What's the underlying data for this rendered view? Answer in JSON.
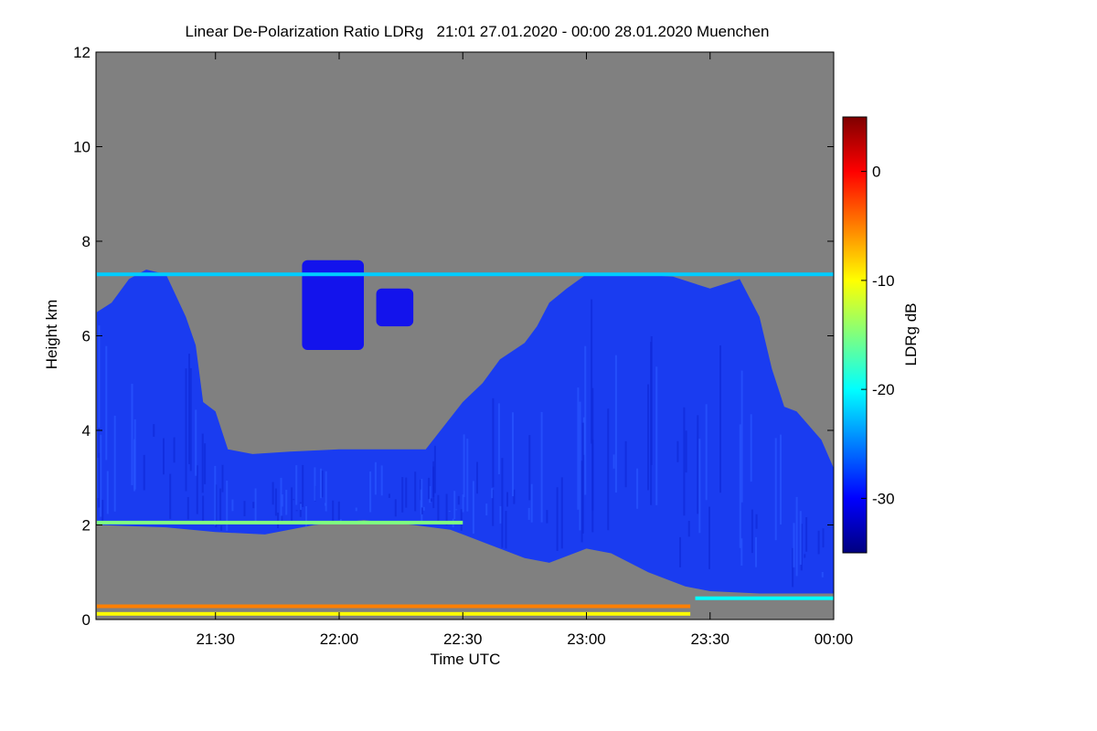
{
  "chart_data": {
    "type": "heatmap",
    "title": "Linear De-Polarization Ratio LDRg   21:01 27.01.2020 - 00:00 28.01.2020 Muenchen",
    "xlabel": "Time UTC",
    "ylabel": "Height km",
    "x_ticks": [
      "21:30",
      "22:00",
      "22:30",
      "23:00",
      "23:30",
      "00:00"
    ],
    "x_tick_hours": [
      21.5,
      22.0,
      22.5,
      23.0,
      23.5,
      24.0
    ],
    "xlim_hours": [
      21.0167,
      24.0
    ],
    "y_ticks": [
      "0",
      "2",
      "4",
      "6",
      "8",
      "10",
      "12"
    ],
    "y_tick_values": [
      0,
      2,
      4,
      6,
      8,
      10,
      12
    ],
    "ylim": [
      0,
      12
    ],
    "colorbar": {
      "label": "LDRg dB",
      "ticks": [
        "0",
        "-10",
        "-20",
        "-30"
      ],
      "tick_values": [
        0,
        -10,
        -20,
        -30
      ],
      "range": [
        -35,
        5
      ],
      "colormap": [
        "#00007f",
        "#0000ff",
        "#007fff",
        "#00ffff",
        "#7fff7f",
        "#ffff00",
        "#ff7f00",
        "#ff0000",
        "#7f0000"
      ]
    },
    "background_color": "#808080",
    "cloud_color": "#1a3cf0",
    "cloud_top_km": [
      [
        21.02,
        6.5
      ],
      [
        21.08,
        6.7
      ],
      [
        21.15,
        7.2
      ],
      [
        21.22,
        7.4
      ],
      [
        21.3,
        7.3
      ],
      [
        21.38,
        6.4
      ],
      [
        21.42,
        5.8
      ],
      [
        21.45,
        4.6
      ],
      [
        21.5,
        4.4
      ],
      [
        21.55,
        3.6
      ],
      [
        21.65,
        3.5
      ],
      [
        21.8,
        3.55
      ],
      [
        22.0,
        3.6
      ],
      [
        22.2,
        3.6
      ],
      [
        22.35,
        3.6
      ],
      [
        22.5,
        4.6
      ],
      [
        22.58,
        5.0
      ],
      [
        22.65,
        5.5
      ],
      [
        22.75,
        5.85
      ],
      [
        22.8,
        6.2
      ],
      [
        22.85,
        6.7
      ],
      [
        22.92,
        7.0
      ],
      [
        23.0,
        7.3
      ],
      [
        23.2,
        7.3
      ],
      [
        23.35,
        7.25
      ],
      [
        23.5,
        7.0
      ],
      [
        23.62,
        7.2
      ],
      [
        23.7,
        6.4
      ],
      [
        23.75,
        5.3
      ],
      [
        23.8,
        4.5
      ],
      [
        23.85,
        4.4
      ],
      [
        23.9,
        4.1
      ],
      [
        23.95,
        3.8
      ],
      [
        24.0,
        3.2
      ]
    ],
    "cloud_base_km": [
      [
        21.02,
        2.0
      ],
      [
        21.3,
        1.95
      ],
      [
        21.5,
        1.85
      ],
      [
        21.7,
        1.8
      ],
      [
        21.9,
        2.0
      ],
      [
        22.1,
        2.1
      ],
      [
        22.3,
        2.0
      ],
      [
        22.45,
        1.9
      ],
      [
        22.6,
        1.6
      ],
      [
        22.75,
        1.3
      ],
      [
        22.85,
        1.2
      ],
      [
        23.0,
        1.5
      ],
      [
        23.1,
        1.4
      ],
      [
        23.25,
        1.0
      ],
      [
        23.4,
        0.7
      ],
      [
        23.5,
        0.6
      ],
      [
        23.7,
        0.55
      ],
      [
        24.0,
        0.55
      ]
    ],
    "upper_patches": [
      {
        "x": [
          21.85,
          22.1
        ],
        "y": [
          5.7,
          7.6
        ],
        "ldr_db": -30
      },
      {
        "x": [
          22.15,
          22.3
        ],
        "y": [
          6.2,
          7.0
        ],
        "ldr_db": -30
      }
    ],
    "thin_layers": [
      {
        "label": "cirrus-line",
        "x": [
          21.02,
          24.0
        ],
        "height_km": 7.3,
        "ldr_db": -22
      },
      {
        "label": "near-surface-orange",
        "x": [
          21.02,
          23.42
        ],
        "height_km": 0.28,
        "ldr_db": -5
      },
      {
        "label": "near-surface-yellow",
        "x": [
          21.02,
          23.42
        ],
        "height_km": 0.12,
        "ldr_db": -10
      },
      {
        "label": "low-cyan-band",
        "x": [
          23.44,
          24.0
        ],
        "height_km": 0.45,
        "ldr_db": -20
      },
      {
        "label": "cloud-base-speckle",
        "x": [
          21.02,
          22.5
        ],
        "height_km": 2.05,
        "ldr_db": -15
      }
    ]
  }
}
